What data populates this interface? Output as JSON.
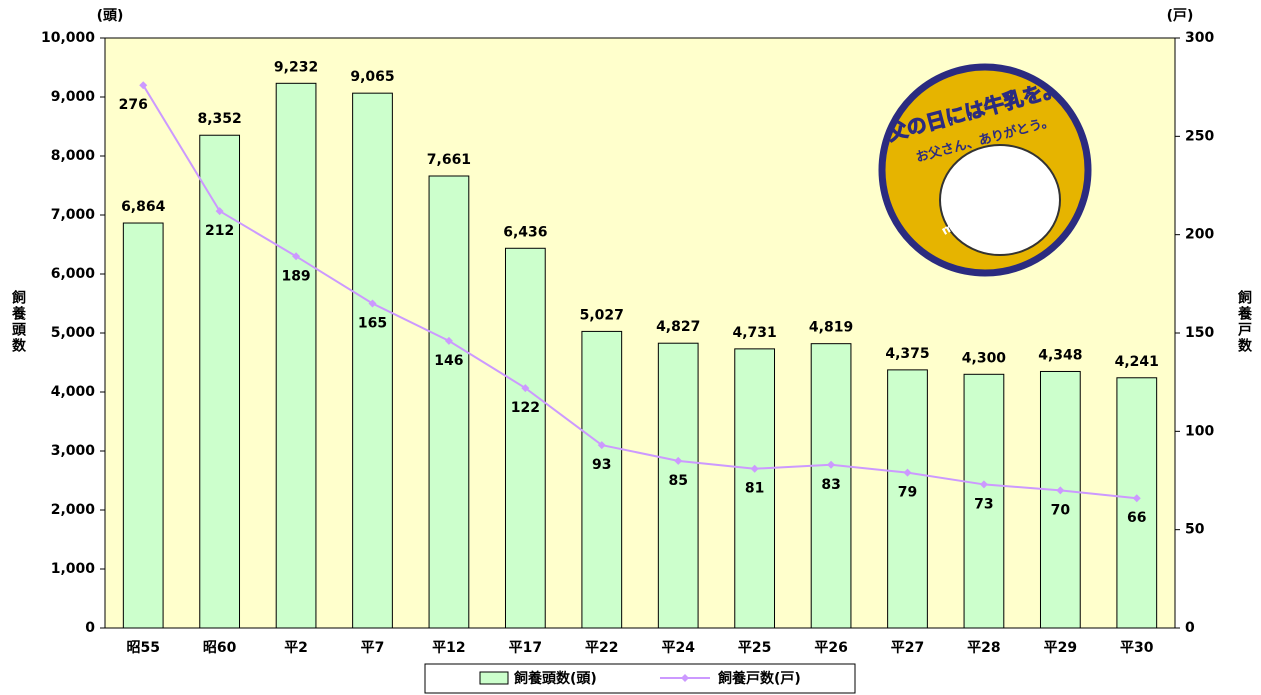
{
  "chart_data": {
    "type": "bar_line",
    "categories": [
      "昭55",
      "昭60",
      "平2",
      "平7",
      "平12",
      "平17",
      "平22",
      "平24",
      "平25",
      "平26",
      "平27",
      "平28",
      "平29",
      "平30"
    ],
    "series": [
      {
        "name": "飼養頭数(頭)",
        "type": "bar",
        "color": "#ccffcc",
        "axis": "y",
        "values": [
          6864,
          8352,
          9232,
          9065,
          7661,
          6436,
          5027,
          4827,
          4731,
          4819,
          4375,
          4300,
          4348,
          4241
        ],
        "value_labels": [
          "6,864",
          "8,352",
          "9,232",
          "9,065",
          "7,661",
          "6,436",
          "5,027",
          "4,827",
          "4,731",
          "4,819",
          "4,375",
          "4,300",
          "4,348",
          "4,241"
        ]
      },
      {
        "name": "飼養戸数(戸)",
        "type": "line",
        "color": "#cc99ff",
        "axis": "y2",
        "values": [
          276,
          212,
          189,
          165,
          146,
          122,
          93,
          85,
          81,
          83,
          79,
          73,
          70,
          66
        ]
      }
    ],
    "y_label": "飼養頭数",
    "y_unit": "(頭)",
    "y2_label": "飼養戸数",
    "y2_unit": "(戸)",
    "ylim": [
      0,
      10000
    ],
    "yticks": [
      0,
      {
        "value": 1000,
        "label": "1,000"
      },
      {
        "value": 2000,
        "label": "2,000"
      },
      {
        "value": 3000,
        "label": "3,000"
      },
      {
        "value": 4000,
        "label": "4,000"
      },
      {
        "value": 5000,
        "label": "5,000"
      },
      {
        "value": 6000,
        "label": "6,000"
      },
      {
        "value": 7000,
        "label": "7,000"
      },
      {
        "value": 8000,
        "label": "8,000"
      },
      {
        "value": 9000,
        "label": "9,000"
      },
      {
        "value": 10000,
        "label": "10,000"
      }
    ],
    "y2lim": [
      0,
      300
    ],
    "y2ticks": [
      0,
      50,
      100,
      150,
      200,
      250,
      300
    ],
    "grid": false,
    "legend": "bottom",
    "annotations": [
      "父の日には牛乳を。",
      "お父さん、ありがとう。",
      "milk"
    ]
  }
}
